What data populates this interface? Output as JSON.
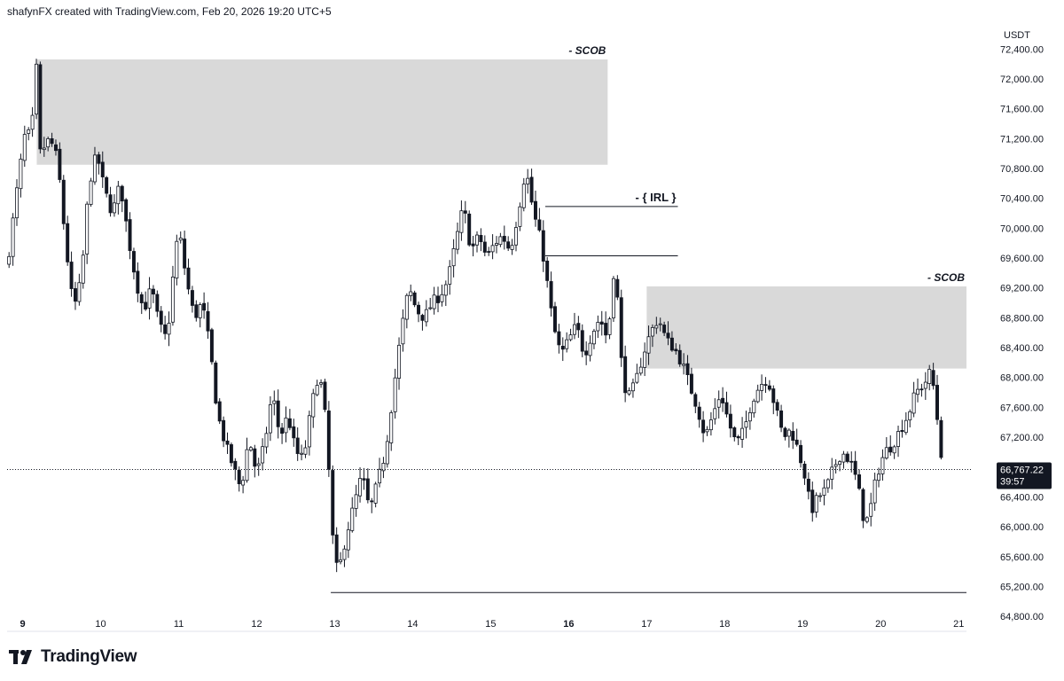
{
  "header": {
    "attribution": "shafynFX created with TradingView.com, Feb 20, 2026 19:20 UTC+5"
  },
  "branding": {
    "logo_text": "TradingView"
  },
  "colors": {
    "candle": "#131722",
    "up_fill": "#ffffff",
    "zone_fill": "#d9d9d9",
    "price_tag_bg": "#131722",
    "price_tag_text": "#ffffff",
    "axis_text": "#131722"
  },
  "chart_data": {
    "type": "candlestick",
    "currency_label": "USDT",
    "ylim": [
      64600,
      72700
    ],
    "xlim": [
      8.8,
      21.1
    ],
    "y_ticks": [
      "64,800.00",
      "65,200.00",
      "65,600.00",
      "66,000.00",
      "66,400.00",
      "67,200.00",
      "67,600.00",
      "68,000.00",
      "68,400.00",
      "68,800.00",
      "69,200.00",
      "69,600.00",
      "70,000.00",
      "70,400.00",
      "70,800.00",
      "71,200.00",
      "71,600.00",
      "72,000.00",
      "72,400.00"
    ],
    "x_ticks": [
      {
        "label": "9",
        "value": 9,
        "bold": true
      },
      {
        "label": "10",
        "value": 10
      },
      {
        "label": "11",
        "value": 11
      },
      {
        "label": "12",
        "value": 12
      },
      {
        "label": "13",
        "value": 13
      },
      {
        "label": "14",
        "value": 14
      },
      {
        "label": "15",
        "value": 15
      },
      {
        "label": "16",
        "value": 16,
        "bold": true
      },
      {
        "label": "17",
        "value": 17
      },
      {
        "label": "18",
        "value": 18
      },
      {
        "label": "19",
        "value": 19
      },
      {
        "label": "20",
        "value": 20
      },
      {
        "label": "21",
        "value": 21
      }
    ],
    "current_price": {
      "value": 66767.22,
      "label": "66,767.22",
      "countdown": "39:57"
    },
    "zones": [
      {
        "label": "- SCOB",
        "x_start": 9.18,
        "x_end": 16.5,
        "y_low": 70850,
        "y_high": 72260
      },
      {
        "label": "- SCOB",
        "x_start": 17.0,
        "x_end": 21.1,
        "y_low": 68120,
        "y_high": 69220
      }
    ],
    "levels": [
      {
        "label": "- { IRL }",
        "x_start": 15.7,
        "x_end": 17.4,
        "y": 70290
      },
      {
        "label": "",
        "x_start": 15.7,
        "x_end": 17.4,
        "y": 69630
      },
      {
        "label": "",
        "x_start": 12.95,
        "x_end": 21.1,
        "y": 65120
      }
    ],
    "path": [
      [
        8.8,
        69500
      ],
      [
        8.95,
        70700
      ],
      [
        9.05,
        71400
      ],
      [
        9.1,
        71100
      ],
      [
        9.18,
        72200
      ],
      [
        9.22,
        71000
      ],
      [
        9.35,
        71200
      ],
      [
        9.45,
        70900
      ],
      [
        9.55,
        69800
      ],
      [
        9.65,
        68900
      ],
      [
        9.75,
        69300
      ],
      [
        9.85,
        70600
      ],
      [
        9.95,
        71000
      ],
      [
        10.05,
        70500
      ],
      [
        10.15,
        70200
      ],
      [
        10.25,
        70600
      ],
      [
        10.35,
        69900
      ],
      [
        10.45,
        69300
      ],
      [
        10.55,
        68900
      ],
      [
        10.65,
        69200
      ],
      [
        10.75,
        68700
      ],
      [
        10.85,
        68500
      ],
      [
        10.95,
        69600
      ],
      [
        11.0,
        70000
      ],
      [
        11.1,
        69300
      ],
      [
        11.2,
        68800
      ],
      [
        11.3,
        69000
      ],
      [
        11.4,
        68400
      ],
      [
        11.5,
        67500
      ],
      [
        11.6,
        67100
      ],
      [
        11.7,
        66800
      ],
      [
        11.8,
        66500
      ],
      [
        11.9,
        67200
      ],
      [
        12.0,
        66700
      ],
      [
        12.1,
        67100
      ],
      [
        12.2,
        67800
      ],
      [
        12.3,
        67200
      ],
      [
        12.4,
        67500
      ],
      [
        12.5,
        67000
      ],
      [
        12.6,
        66900
      ],
      [
        12.7,
        67600
      ],
      [
        12.8,
        68100
      ],
      [
        12.9,
        67300
      ],
      [
        12.95,
        66200
      ],
      [
        13.0,
        65500
      ],
      [
        13.05,
        65400
      ],
      [
        13.15,
        65900
      ],
      [
        13.25,
        66300
      ],
      [
        13.35,
        66700
      ],
      [
        13.45,
        66200
      ],
      [
        13.55,
        66600
      ],
      [
        13.65,
        67000
      ],
      [
        13.75,
        67800
      ],
      [
        13.85,
        68600
      ],
      [
        13.95,
        69200
      ],
      [
        14.05,
        68900
      ],
      [
        14.15,
        68800
      ],
      [
        14.25,
        69000
      ],
      [
        14.35,
        69100
      ],
      [
        14.45,
        69300
      ],
      [
        14.55,
        69800
      ],
      [
        14.65,
        70300
      ],
      [
        14.75,
        69700
      ],
      [
        14.85,
        69900
      ],
      [
        14.95,
        69600
      ],
      [
        15.05,
        69800
      ],
      [
        15.15,
        69900
      ],
      [
        15.25,
        69700
      ],
      [
        15.35,
        70200
      ],
      [
        15.45,
        70800
      ],
      [
        15.55,
        70200
      ],
      [
        15.65,
        69800
      ],
      [
        15.72,
        69300
      ],
      [
        15.8,
        68700
      ],
      [
        15.9,
        68300
      ],
      [
        16.0,
        68500
      ],
      [
        16.1,
        68700
      ],
      [
        16.2,
        68300
      ],
      [
        16.3,
        68600
      ],
      [
        16.4,
        68800
      ],
      [
        16.5,
        68500
      ],
      [
        16.6,
        69700
      ],
      [
        16.65,
        68400
      ],
      [
        16.75,
        67700
      ],
      [
        16.85,
        67900
      ],
      [
        16.95,
        68300
      ],
      [
        17.05,
        68600
      ],
      [
        17.15,
        68800
      ],
      [
        17.25,
        68500
      ],
      [
        17.35,
        68400
      ],
      [
        17.45,
        68200
      ],
      [
        17.55,
        67900
      ],
      [
        17.65,
        67600
      ],
      [
        17.75,
        67200
      ],
      [
        17.85,
        67500
      ],
      [
        17.95,
        67800
      ],
      [
        18.05,
        67400
      ],
      [
        18.15,
        67100
      ],
      [
        18.25,
        67300
      ],
      [
        18.35,
        67700
      ],
      [
        18.45,
        67900
      ],
      [
        18.55,
        68000
      ],
      [
        18.65,
        67600
      ],
      [
        18.75,
        67200
      ],
      [
        18.85,
        67300
      ],
      [
        18.95,
        67000
      ],
      [
        19.05,
        66600
      ],
      [
        19.1,
        66200
      ],
      [
        19.2,
        66400
      ],
      [
        19.3,
        66500
      ],
      [
        19.4,
        66800
      ],
      [
        19.5,
        67000
      ],
      [
        19.6,
        66900
      ],
      [
        19.7,
        66600
      ],
      [
        19.8,
        66000
      ],
      [
        19.88,
        66300
      ],
      [
        19.95,
        66700
      ],
      [
        20.05,
        67000
      ],
      [
        20.15,
        67100
      ],
      [
        20.25,
        67300
      ],
      [
        20.35,
        67500
      ],
      [
        20.45,
        67800
      ],
      [
        20.55,
        67900
      ],
      [
        20.65,
        68100
      ],
      [
        20.72,
        67500
      ],
      [
        20.8,
        66760
      ]
    ]
  }
}
